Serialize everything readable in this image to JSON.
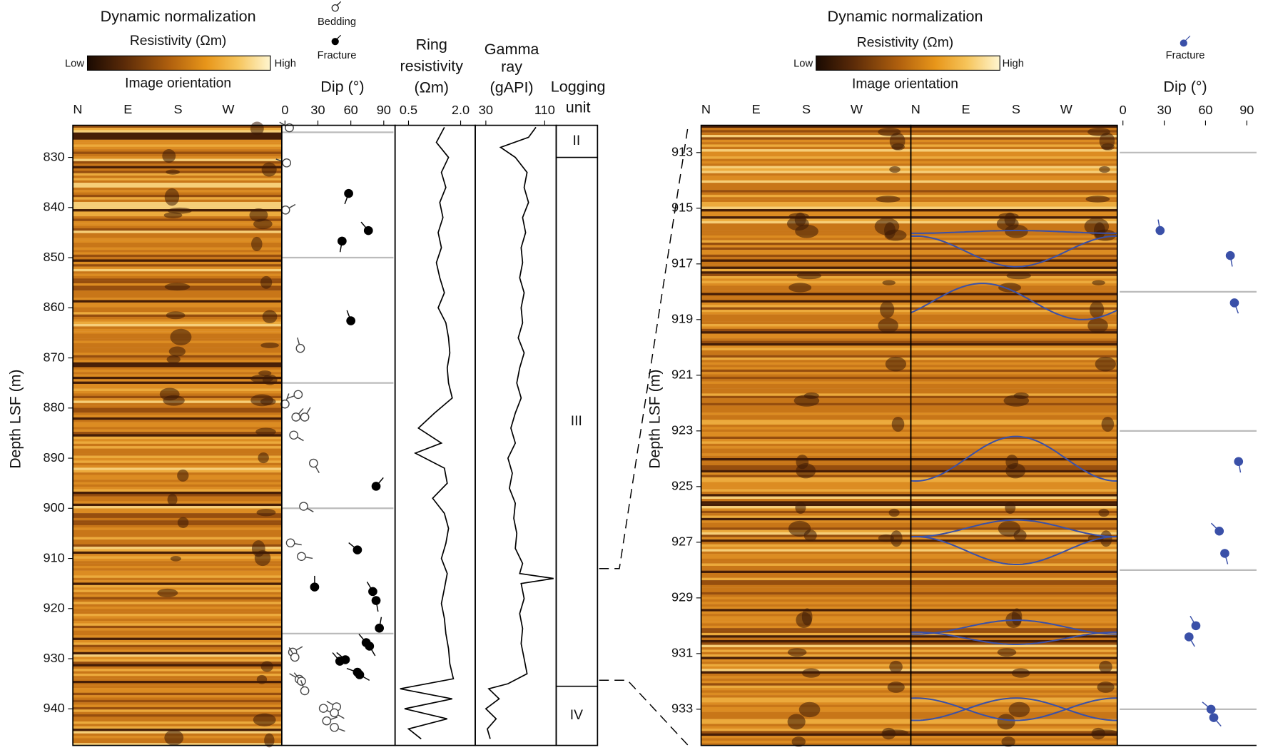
{
  "left": {
    "image": {
      "title": "Dynamic normalization",
      "scale_label": "Resistivity (Ωm)",
      "low": "Low",
      "high": "High",
      "orientation_label": "Image orientation",
      "orientation": [
        "N",
        "E",
        "S",
        "W"
      ]
    },
    "legend": {
      "bedding": "Bedding",
      "fracture": "Fracture"
    },
    "depth_label": "Depth LSF (m)",
    "ylim": [
      823.6,
      947.3
    ],
    "yticks": [
      830,
      840,
      850,
      860,
      870,
      880,
      890,
      900,
      910,
      920,
      930,
      940
    ],
    "dip": {
      "title": "Dip (°)",
      "xlim": [
        0,
        90
      ],
      "xticks": [
        0,
        30,
        60,
        90
      ],
      "marker_depths": [
        825,
        850,
        875,
        900,
        925
      ],
      "bedding": {
        "depth": [
          824.1,
          831.1,
          840.5,
          868.1,
          877.3,
          879.2,
          881.8,
          881.8,
          885.4,
          891.0,
          899.6,
          906.9,
          909.6,
          928.7,
          929.7,
          934.1,
          934.5,
          936.4,
          939.9,
          939.6,
          940.8,
          942.4,
          943.7
        ],
        "dip": [
          4,
          1.5,
          0.5,
          14,
          12,
          0,
          10,
          18,
          8,
          26,
          17,
          5,
          15,
          7,
          9,
          13,
          15,
          18,
          35,
          47,
          45,
          38,
          45
        ],
        "azimuth": [
          300,
          290,
          60,
          345,
          250,
          20,
          40,
          30,
          120,
          150,
          120,
          100,
          100,
          60,
          330,
          300,
          320,
          340,
          120,
          300,
          120,
          70,
          110
        ]
      },
      "fracture": {
        "depth": [
          837.2,
          844.6,
          846.7,
          862.6,
          895.6,
          908.3,
          915.7,
          916.6,
          918.4,
          923.9,
          926.8,
          927.5,
          930.2,
          930.5,
          932.7,
          933.2
        ],
        "dip": [
          58,
          76,
          52,
          60,
          83,
          66,
          27,
          80,
          83,
          86,
          74,
          77,
          55,
          50,
          66,
          68
        ],
        "azimuth": [
          200,
          320,
          190,
          340,
          40,
          310,
          0,
          330,
          170,
          10,
          320,
          150,
          310,
          320,
          290,
          120
        ]
      }
    },
    "ring": {
      "title": [
        "Ring",
        "resistivity",
        "(Ωm)"
      ],
      "log": true,
      "xlim": [
        0.35,
        2.95
      ],
      "xticks": [
        0.5,
        {
          "value": 2,
          "label": "2.0"
        }
      ],
      "depth": [
        824,
        827,
        830,
        833,
        836,
        839,
        842,
        845,
        848,
        851,
        854,
        857,
        860,
        863,
        866,
        869,
        872,
        875,
        878,
        881,
        884,
        887,
        889,
        892,
        895,
        898,
        901,
        904,
        907,
        910,
        913,
        916,
        919,
        922,
        925,
        928,
        931,
        934,
        936,
        938,
        940,
        942,
        944,
        946
      ],
      "values": [
        1.3,
        1.05,
        1.45,
        1.2,
        1.35,
        1.15,
        1.25,
        1.1,
        1.2,
        1.05,
        1.15,
        1.3,
        1.1,
        1.35,
        1.45,
        1.5,
        1.4,
        1.45,
        1.6,
        1.0,
        0.65,
        1.2,
        0.6,
        1.3,
        1.4,
        0.95,
        1.3,
        1.45,
        1.35,
        1.2,
        1.4,
        1.3,
        1.2,
        1.3,
        1.35,
        1.45,
        1.5,
        1.65,
        0.4,
        1.6,
        0.45,
        1.4,
        0.5,
        0.7
      ]
    },
    "gamma": {
      "title": [
        "Gamma",
        "ray",
        "(gAPI)"
      ],
      "xlim": [
        15.6,
        125.6
      ],
      "xticks": [
        30,
        110
      ],
      "depth": [
        824,
        826,
        828,
        830,
        833,
        836,
        839,
        842,
        845,
        848,
        851,
        854,
        857,
        860,
        863,
        866,
        869,
        872,
        875,
        878,
        881,
        884,
        887,
        890,
        893,
        896,
        899,
        902,
        905,
        908,
        911,
        913,
        914,
        915,
        918,
        921,
        924,
        927,
        930,
        933,
        935,
        936,
        938,
        940,
        942,
        944,
        946
      ],
      "values": [
        98,
        88,
        50,
        70,
        86,
        82,
        88,
        80,
        84,
        78,
        80,
        76,
        82,
        78,
        80,
        74,
        82,
        76,
        72,
        78,
        70,
        64,
        70,
        60,
        66,
        62,
        70,
        68,
        72,
        70,
        80,
        76,
        122,
        78,
        82,
        76,
        80,
        78,
        82,
        86,
        60,
        34,
        48,
        30,
        44,
        32,
        36
      ]
    },
    "units": {
      "title": [
        "Logging",
        "unit"
      ],
      "names": [
        "II",
        "III",
        "IV"
      ],
      "boundaries": [
        830,
        935.5
      ]
    }
  },
  "right": {
    "image": {
      "title": "Dynamic normalization",
      "scale_label": "Resistivity (Ωm)",
      "low": "Low",
      "high": "High",
      "orientation_label": "Image orientation",
      "orientation": [
        "N",
        "E",
        "S",
        "W"
      ]
    },
    "legend": {
      "fracture": "Fracture"
    },
    "depth_label": "Depth LSF (m)",
    "ylim": [
      912.02,
      934.3
    ],
    "yticks": [
      913,
      915,
      917,
      919,
      921,
      923,
      925,
      927,
      929,
      931,
      933
    ],
    "sinusoids": {
      "depth": [
        915.85,
        916.55,
        918.35,
        924.0,
        926.5,
        927.3,
        930.05,
        930.45,
        933.0,
        933.0
      ],
      "amplitude": [
        0.05,
        0.55,
        0.65,
        0.8,
        0.3,
        0.5,
        0.25,
        0.22,
        0.4,
        0.4
      ],
      "azimuth": [
        0,
        180,
        300,
        0,
        0,
        180,
        0,
        180,
        0,
        180
      ]
    },
    "dip": {
      "title": "Dip (°)",
      "xlim": [
        0,
        90
      ],
      "xticks": [
        0,
        30,
        60,
        90
      ],
      "marker_depths": [
        913,
        918,
        923,
        928,
        933
      ],
      "fracture": {
        "depth": [
          915.8,
          916.7,
          918.4,
          924.1,
          926.6,
          927.4,
          930.0,
          930.4,
          933.0,
          933.3
        ],
        "dip": [
          27,
          78,
          81,
          84,
          70,
          74,
          53,
          48,
          64,
          66
        ],
        "azimuth": [
          350,
          170,
          160,
          170,
          315,
          165,
          330,
          150,
          310,
          140
        ]
      }
    }
  }
}
